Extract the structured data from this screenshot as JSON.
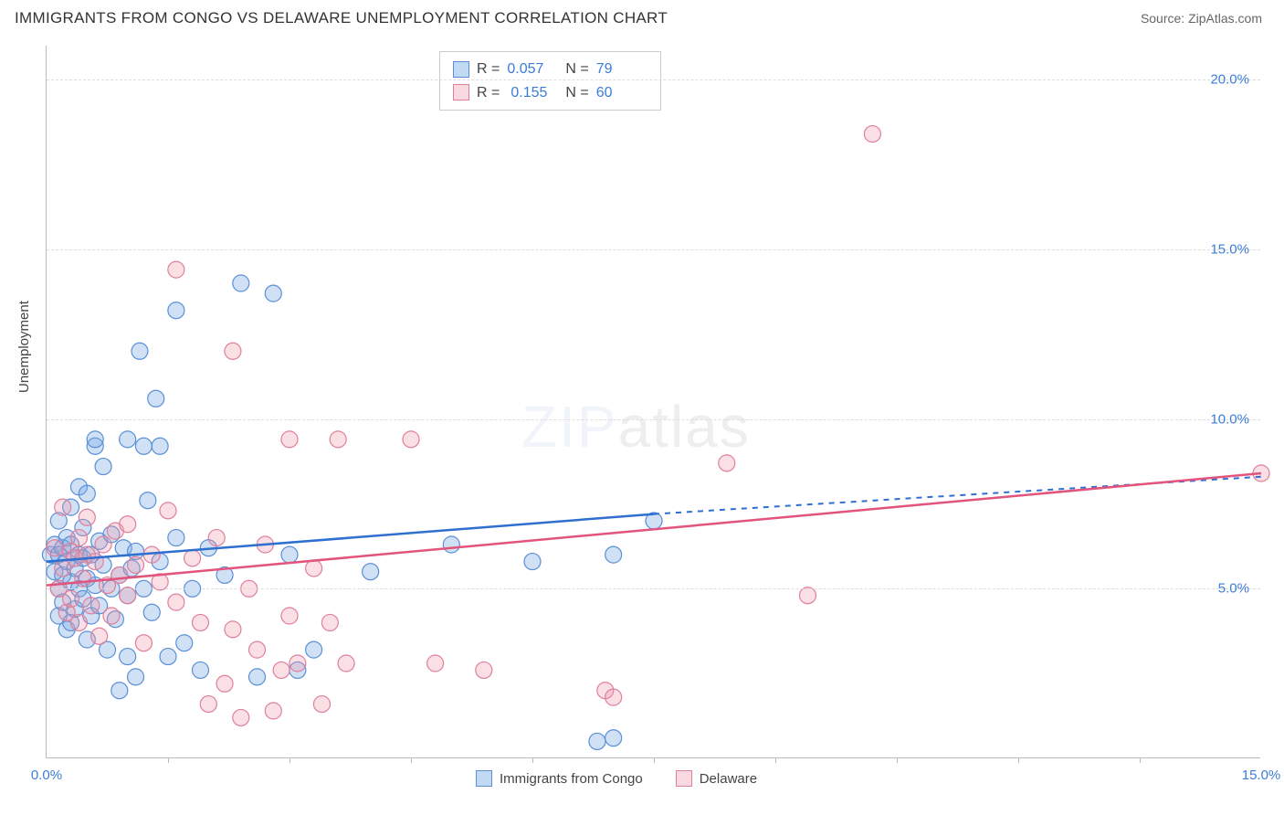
{
  "title": "IMMIGRANTS FROM CONGO VS DELAWARE UNEMPLOYMENT CORRELATION CHART",
  "source": "Source: ZipAtlas.com",
  "ylabel": "Unemployment",
  "watermark_zip": "ZIP",
  "watermark_atlas": "atlas",
  "chart": {
    "type": "scatter",
    "background_color": "#ffffff",
    "grid_color": "#dddddd",
    "axis_color": "#bbbbbb",
    "tick_label_color": "#3b7dd8",
    "xlim": [
      0,
      15
    ],
    "ylim": [
      0,
      21
    ],
    "xtick_labels": [
      "0.0%",
      "15.0%"
    ],
    "xtick_positions": [
      0,
      15
    ],
    "xtick_minor": [
      1.5,
      3,
      4.5,
      6,
      7.5,
      9,
      10.5,
      12,
      13.5
    ],
    "ytick_labels": [
      "5.0%",
      "10.0%",
      "15.0%",
      "20.0%"
    ],
    "ytick_positions": [
      5,
      10,
      15,
      20
    ],
    "marker_radius": 9,
    "marker_stroke_width": 1.2,
    "series": [
      {
        "name": "Immigrants from Congo",
        "legend_label": "Immigrants from Congo",
        "fill_color": "rgba(120,170,230,0.35)",
        "stroke_color": "#5a8fd6",
        "line_color": "#2e6fd0",
        "R_label": "R =",
        "R": "0.057",
        "N_label": "N =",
        "N": "79",
        "trend": {
          "x1": 0,
          "y1": 5.8,
          "x2_solid": 7.5,
          "y2_solid": 7.2,
          "x2": 15,
          "y2": 8.3
        },
        "points": [
          [
            0.05,
            6.0
          ],
          [
            0.1,
            5.5
          ],
          [
            0.1,
            6.3
          ],
          [
            0.15,
            4.2
          ],
          [
            0.15,
            5.0
          ],
          [
            0.15,
            6.0
          ],
          [
            0.15,
            7.0
          ],
          [
            0.2,
            4.6
          ],
          [
            0.2,
            5.4
          ],
          [
            0.2,
            6.2
          ],
          [
            0.25,
            3.8
          ],
          [
            0.25,
            5.8
          ],
          [
            0.25,
            6.5
          ],
          [
            0.3,
            4.0
          ],
          [
            0.3,
            5.2
          ],
          [
            0.3,
            6.3
          ],
          [
            0.3,
            7.4
          ],
          [
            0.35,
            5.6
          ],
          [
            0.35,
            4.4
          ],
          [
            0.4,
            5.0
          ],
          [
            0.4,
            6.0
          ],
          [
            0.4,
            8.0
          ],
          [
            0.45,
            4.7
          ],
          [
            0.45,
            5.9
          ],
          [
            0.45,
            6.8
          ],
          [
            0.5,
            3.5
          ],
          [
            0.5,
            5.3
          ],
          [
            0.5,
            7.8
          ],
          [
            0.55,
            4.2
          ],
          [
            0.55,
            6.0
          ],
          [
            0.6,
            5.1
          ],
          [
            0.6,
            9.2
          ],
          [
            0.6,
            9.4
          ],
          [
            0.65,
            4.5
          ],
          [
            0.65,
            6.4
          ],
          [
            0.7,
            5.7
          ],
          [
            0.7,
            8.6
          ],
          [
            0.75,
            3.2
          ],
          [
            0.8,
            5.0
          ],
          [
            0.8,
            6.6
          ],
          [
            0.85,
            4.1
          ],
          [
            0.9,
            5.4
          ],
          [
            0.9,
            2.0
          ],
          [
            0.95,
            6.2
          ],
          [
            1.0,
            9.4
          ],
          [
            1.0,
            4.8
          ],
          [
            1.0,
            3.0
          ],
          [
            1.05,
            5.6
          ],
          [
            1.1,
            6.1
          ],
          [
            1.1,
            2.4
          ],
          [
            1.15,
            12.0
          ],
          [
            1.2,
            5.0
          ],
          [
            1.2,
            9.2
          ],
          [
            1.25,
            7.6
          ],
          [
            1.3,
            4.3
          ],
          [
            1.35,
            10.6
          ],
          [
            1.4,
            5.8
          ],
          [
            1.4,
            9.2
          ],
          [
            1.5,
            3.0
          ],
          [
            1.6,
            6.5
          ],
          [
            1.6,
            13.2
          ],
          [
            1.7,
            3.4
          ],
          [
            1.8,
            5.0
          ],
          [
            1.9,
            2.6
          ],
          [
            2.0,
            6.2
          ],
          [
            2.2,
            5.4
          ],
          [
            2.4,
            14.0
          ],
          [
            2.6,
            2.4
          ],
          [
            2.8,
            13.7
          ],
          [
            3.0,
            6.0
          ],
          [
            3.1,
            2.6
          ],
          [
            3.3,
            3.2
          ],
          [
            4.0,
            5.5
          ],
          [
            5.0,
            6.3
          ],
          [
            6.0,
            5.8
          ],
          [
            6.8,
            0.5
          ],
          [
            7.0,
            6.0
          ],
          [
            7.0,
            0.6
          ],
          [
            7.5,
            7.0
          ]
        ]
      },
      {
        "name": "Delaware",
        "legend_label": "Delaware",
        "fill_color": "rgba(240,150,170,0.30)",
        "stroke_color": "#e07f9a",
        "line_color": "#e3547d",
        "R_label": "R =",
        "R": "0.155",
        "N_label": "N =",
        "N": "60",
        "trend": {
          "x1": 0,
          "y1": 5.1,
          "x2_solid": 15,
          "y2_solid": 8.4,
          "x2": 15,
          "y2": 8.4
        },
        "points": [
          [
            0.1,
            6.2
          ],
          [
            0.15,
            5.0
          ],
          [
            0.2,
            7.4
          ],
          [
            0.2,
            5.6
          ],
          [
            0.25,
            4.3
          ],
          [
            0.3,
            6.1
          ],
          [
            0.3,
            4.7
          ],
          [
            0.35,
            5.9
          ],
          [
            0.4,
            6.5
          ],
          [
            0.4,
            4.0
          ],
          [
            0.45,
            5.3
          ],
          [
            0.5,
            6.0
          ],
          [
            0.5,
            7.1
          ],
          [
            0.55,
            4.5
          ],
          [
            0.6,
            5.8
          ],
          [
            0.65,
            3.6
          ],
          [
            0.7,
            6.3
          ],
          [
            0.75,
            5.1
          ],
          [
            0.8,
            4.2
          ],
          [
            0.85,
            6.7
          ],
          [
            0.9,
            5.4
          ],
          [
            1.0,
            4.8
          ],
          [
            1.0,
            6.9
          ],
          [
            1.1,
            5.7
          ],
          [
            1.2,
            3.4
          ],
          [
            1.3,
            6.0
          ],
          [
            1.4,
            5.2
          ],
          [
            1.5,
            7.3
          ],
          [
            1.6,
            4.6
          ],
          [
            1.6,
            14.4
          ],
          [
            1.8,
            5.9
          ],
          [
            1.9,
            4.0
          ],
          [
            2.0,
            1.6
          ],
          [
            2.1,
            6.5
          ],
          [
            2.2,
            2.2
          ],
          [
            2.3,
            12.0
          ],
          [
            2.3,
            3.8
          ],
          [
            2.4,
            1.2
          ],
          [
            2.5,
            5.0
          ],
          [
            2.6,
            3.2
          ],
          [
            2.7,
            6.3
          ],
          [
            2.8,
            1.4
          ],
          [
            2.9,
            2.6
          ],
          [
            3.0,
            4.2
          ],
          [
            3.0,
            9.4
          ],
          [
            3.1,
            2.8
          ],
          [
            3.3,
            5.6
          ],
          [
            3.4,
            1.6
          ],
          [
            3.5,
            4.0
          ],
          [
            3.6,
            9.4
          ],
          [
            3.7,
            2.8
          ],
          [
            4.5,
            9.4
          ],
          [
            4.8,
            2.8
          ],
          [
            5.4,
            2.6
          ],
          [
            6.9,
            2.0
          ],
          [
            8.4,
            8.7
          ],
          [
            9.4,
            4.8
          ],
          [
            10.2,
            18.4
          ],
          [
            15.0,
            8.4
          ],
          [
            7.0,
            1.8
          ]
        ]
      }
    ]
  }
}
